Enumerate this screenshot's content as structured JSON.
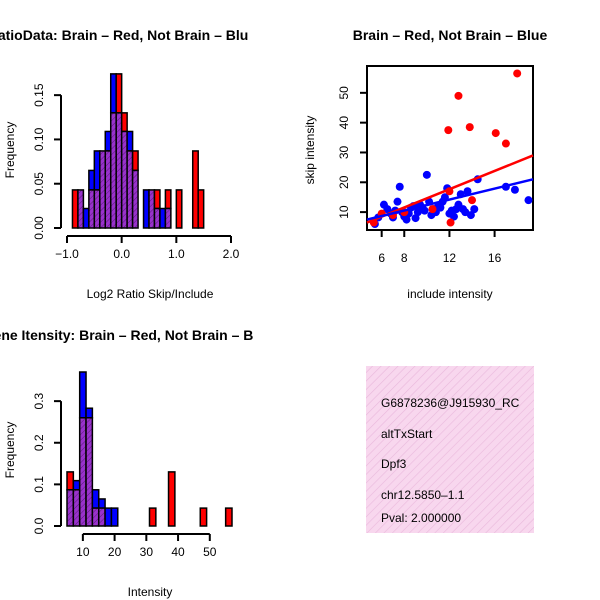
{
  "colors": {
    "brain": "#ff0000",
    "not_brain": "#0000ff",
    "overlap": "#9932cc",
    "info_bg": "#f8d7ee",
    "pval": "#8b0000"
  },
  "chart_data": [
    {
      "id": "ratio_hist",
      "type": "bar",
      "title": "RatioData: Brain – Red, Not Brain – Blu",
      "xlabel": "Log2 Ratio Skip/Include",
      "ylabel": "Frequency",
      "xlim": [
        -1.0,
        2.0
      ],
      "ylim": [
        0,
        0.175
      ],
      "xticks": [
        "−1.0",
        "0.0",
        "1.0",
        "2.0"
      ],
      "yticks": [
        "0.00",
        "0.05",
        "0.10",
        "0.15"
      ],
      "bin_start": -0.9,
      "bin_width": 0.1,
      "series": [
        {
          "name": "Brain",
          "color_key": "brain",
          "values": [
            0.043,
            0.043,
            0,
            0.043,
            0.043,
            0.087,
            0.087,
            0.13,
            0.174,
            0.13,
            0.087,
            0.087,
            0,
            0,
            0.043,
            0.043,
            0,
            0.043,
            0,
            0.043,
            0,
            0,
            0.087,
            0.043
          ]
        },
        {
          "name": "Not Brain",
          "color_key": "not_brain",
          "values": [
            0,
            0.043,
            0.022,
            0.065,
            0.087,
            0.087,
            0.109,
            0.174,
            0.13,
            0.109,
            0.109,
            0.065,
            0,
            0.043,
            0.043,
            0.022,
            0.022,
            0.022,
            0,
            0,
            0,
            0,
            0,
            0
          ]
        }
      ]
    },
    {
      "id": "scatter",
      "type": "scatter",
      "title": "Brain – Red, Not Brain – Blue",
      "xlabel": "include intensity",
      "ylabel": "skip intensity",
      "xlim": [
        4.7,
        19.4
      ],
      "ylim": [
        4,
        59
      ],
      "xticks": [
        "6",
        "8",
        "12",
        "16"
      ],
      "xtick_values": [
        6,
        8,
        12,
        16
      ],
      "yticks": [
        "10",
        "20",
        "30",
        "40",
        "50"
      ],
      "ytick_values": [
        10,
        20,
        30,
        40,
        50
      ],
      "series": [
        {
          "name": "Not Brain",
          "color_key": "not_brain",
          "points": [
            [
              5.4,
              6.0
            ],
            [
              5.7,
              8.2
            ],
            [
              6.2,
              12.5
            ],
            [
              6.5,
              11.0
            ],
            [
              6.8,
              9.5
            ],
            [
              7.0,
              8.2
            ],
            [
              7.2,
              10.5
            ],
            [
              7.4,
              13.5
            ],
            [
              7.6,
              18.5
            ],
            [
              7.8,
              10.0
            ],
            [
              8.0,
              8.5
            ],
            [
              8.2,
              7.5
            ],
            [
              8.4,
              9.5
            ],
            [
              8.6,
              11.5
            ],
            [
              8.8,
              12.0
            ],
            [
              9.0,
              8.0
            ],
            [
              9.2,
              10.0
            ],
            [
              9.4,
              12.5
            ],
            [
              9.6,
              11.5
            ],
            [
              9.8,
              10.5
            ],
            [
              10.0,
              22.5
            ],
            [
              10.2,
              13.5
            ],
            [
              10.4,
              9.0
            ],
            [
              10.6,
              11.0
            ],
            [
              10.8,
              10.0
            ],
            [
              11.0,
              12.0
            ],
            [
              11.2,
              11.5
            ],
            [
              11.4,
              13.5
            ],
            [
              11.6,
              15.0
            ],
            [
              11.8,
              18.0
            ],
            [
              12.0,
              9.5
            ],
            [
              12.2,
              10.5
            ],
            [
              12.4,
              8.5
            ],
            [
              12.6,
              11.0
            ],
            [
              12.8,
              12.5
            ],
            [
              13.0,
              16.0
            ],
            [
              13.2,
              11.0
            ],
            [
              13.4,
              10.0
            ],
            [
              13.6,
              17.0
            ],
            [
              13.9,
              9.0
            ],
            [
              14.2,
              11.0
            ],
            [
              14.5,
              21.0
            ],
            [
              17.0,
              18.5
            ],
            [
              17.8,
              17.5
            ],
            [
              19.0,
              14.0
            ]
          ]
        },
        {
          "name": "Brain",
          "color_key": "brain",
          "points": [
            [
              5.3,
              6.5
            ],
            [
              6.0,
              9.5
            ],
            [
              7.0,
              9.0
            ],
            [
              8.0,
              10.0
            ],
            [
              10.5,
              11.0
            ],
            [
              11.9,
              37.5
            ],
            [
              12.0,
              17.0
            ],
            [
              12.1,
              6.5
            ],
            [
              12.8,
              49.0
            ],
            [
              13.8,
              38.5
            ],
            [
              14.0,
              14.0
            ],
            [
              16.1,
              36.5
            ],
            [
              17.0,
              33.0
            ],
            [
              18.0,
              56.5
            ]
          ]
        }
      ],
      "trend_lines": [
        {
          "color_key": "brain",
          "x": [
            4.7,
            19.4
          ],
          "y": [
            6.5,
            29.0
          ]
        },
        {
          "color_key": "not_brain",
          "x": [
            4.7,
            19.4
          ],
          "y": [
            7.5,
            21.0
          ]
        }
      ]
    },
    {
      "id": "intensity_hist",
      "type": "bar",
      "title": "Gene Itensity: Brain – Red, Not Brain – B",
      "xlabel": "Intensity",
      "ylabel": "Frequency",
      "xlim": [
        5,
        57
      ],
      "ylim": [
        0,
        0.37
      ],
      "xticks": [
        "10",
        "20",
        "30",
        "40",
        "50"
      ],
      "xtick_values": [
        10,
        20,
        30,
        40,
        50
      ],
      "yticks": [
        "0.0",
        "0.1",
        "0.2",
        "0.3"
      ],
      "ytick_values": [
        0,
        0.1,
        0.2,
        0.3
      ],
      "bin_start": 5,
      "bin_width": 2,
      "series": [
        {
          "name": "Brain",
          "color_key": "brain",
          "values": [
            0.13,
            0.087,
            0.26,
            0.26,
            0.043,
            0.043,
            0,
            0,
            0,
            0,
            0,
            0,
            0,
            0.043,
            0,
            0,
            0.13,
            0,
            0,
            0,
            0,
            0.043,
            0,
            0,
            0,
            0.043
          ]
        },
        {
          "name": "Not Brain",
          "color_key": "not_brain",
          "values": [
            0.087,
            0.109,
            0.37,
            0.283,
            0.087,
            0.065,
            0.043,
            0.043,
            0,
            0,
            0,
            0,
            0,
            0,
            0,
            0,
            0,
            0,
            0,
            0,
            0,
            0,
            0,
            0,
            0,
            0
          ]
        }
      ]
    }
  ],
  "info_panel": {
    "line1": "G6878236@J915930_RC",
    "line2": "altTxStart",
    "line3": "Dpf3",
    "line4": "chr12.5850–1.1",
    "pval": "Pval: 2.000000"
  }
}
